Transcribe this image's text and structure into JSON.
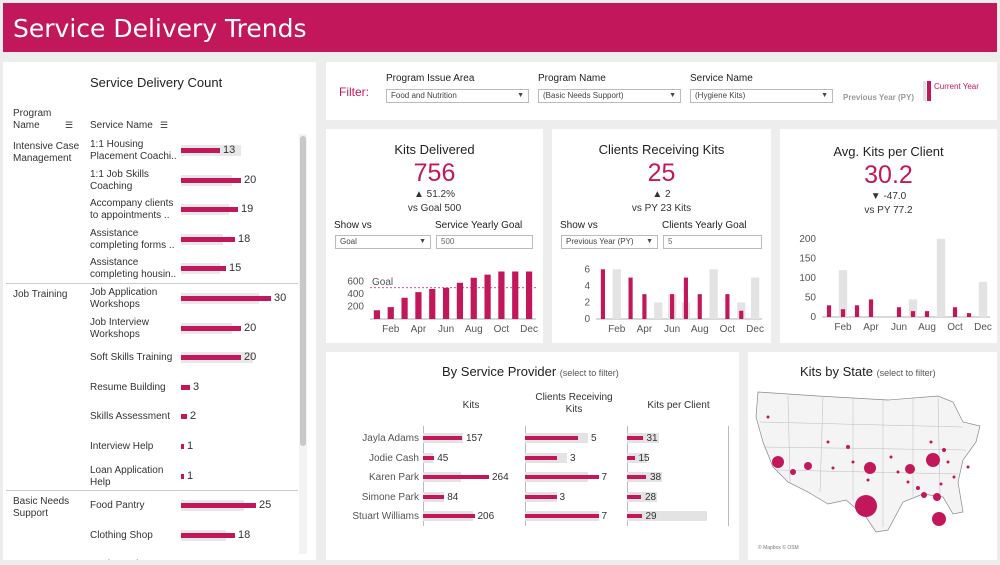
{
  "title": "Service Delivery Trends",
  "left_panel": {
    "title": "Service Delivery Count",
    "col1": "Program Name",
    "col2": "Service Name",
    "groups": [
      {
        "name": "Intensive Case Management",
        "rows": [
          {
            "name": "1:1 Housing Placement Coachi..",
            "value": 13,
            "goal": 20
          },
          {
            "name": "1:1 Job Skills Coaching",
            "value": 20,
            "goal": 17
          },
          {
            "name": "Accompany clients to appointments ..",
            "value": 19,
            "goal": 16
          },
          {
            "name": "Assistance completing forms ..",
            "value": 18,
            "goal": 14
          },
          {
            "name": "Assistance completing housin..",
            "value": 15,
            "goal": 13
          }
        ]
      },
      {
        "name": "Job Training",
        "rows": [
          {
            "name": "Job Application Workshops",
            "value": 30,
            "goal": 26
          },
          {
            "name": "Job Interview Workshops",
            "value": 20,
            "goal": 17
          },
          {
            "name": "Soft Skills Training",
            "value": 20,
            "goal": 24
          },
          {
            "name": "Resume Building",
            "value": 3,
            "goal": 0
          },
          {
            "name": "Skills Assessment",
            "value": 2,
            "goal": 0
          },
          {
            "name": "Interview Help",
            "value": 1,
            "goal": 0
          },
          {
            "name": "Loan Application Help",
            "value": 1,
            "goal": 0
          }
        ]
      },
      {
        "name": "Basic Needs Support",
        "rows": [
          {
            "name": "Food Pantry",
            "value": 25,
            "goal": 21
          },
          {
            "name": "Clothing Shop",
            "value": 18,
            "goal": 15
          },
          {
            "name": "Hygiene Kits",
            "value": null,
            "goal": 0
          }
        ]
      }
    ]
  },
  "filter": {
    "label": "Filter:",
    "f1_label": "Program Issue Area",
    "f1_value": "Food and Nutrition",
    "f2_label": "Program Name",
    "f2_value": "(Basic Needs Support)",
    "f3_label": "Service Name",
    "f3_value": "(Hygiene Kits)",
    "legend_py": "Previous Year (PY)",
    "legend_cy": "Current Year",
    "color_cy": "#c2185b",
    "color_py": "#e3e3e3"
  },
  "kpi1": {
    "title": "Kits Delivered",
    "value": "756",
    "delta": "▲ 51.2%",
    "compare": "vs Goal 500",
    "show_vs_label": "Show vs",
    "show_vs_value": "Goal",
    "goal_label": "Service Yearly Goal",
    "goal_value": "500",
    "y_ticks": [
      "600",
      "400",
      "200"
    ],
    "goal_text": "Goal",
    "x_labels": [
      "Feb",
      "Apr",
      "Jun",
      "Aug",
      "Oct",
      "Dec"
    ]
  },
  "kpi2": {
    "title": "Clients Receiving Kits",
    "value": "25",
    "delta": "▲ 2",
    "compare": "vs PY 23 Kits",
    "show_vs_label": "Show vs",
    "show_vs_value": "Previous Year (PY)",
    "goal_label": "Clients Yearly Goal",
    "goal_value": "5",
    "y_ticks": [
      "6",
      "4",
      "2",
      "0"
    ],
    "x_labels": [
      "Feb",
      "Apr",
      "Jun",
      "Aug",
      "Oct",
      "Dec"
    ]
  },
  "kpi3": {
    "title": "Avg. Kits per Client",
    "value": "30.2",
    "delta": "▼ -47.0",
    "compare": "vs PY 77.2",
    "y_ticks": [
      "200",
      "150",
      "100",
      "50",
      "0"
    ],
    "x_labels": [
      "Feb",
      "Apr",
      "Jun",
      "Aug",
      "Oct",
      "Dec"
    ]
  },
  "provider": {
    "title": "By Service Provider",
    "subtitle": "(select to filter)",
    "col_kits": "Kits",
    "col_clients": "Clients Receiving Kits",
    "col_kpc": "Kits per Client",
    "rows": [
      {
        "name": "Jayla Adams",
        "kits": 157,
        "kits_py": 160,
        "clients": 5,
        "clients_py": 6,
        "kpc": 31,
        "kpc_py": 32
      },
      {
        "name": "Jodie Cash",
        "kits": 45,
        "kits_py": 40,
        "clients": 3,
        "clients_py": 4,
        "kpc": 15,
        "kpc_py": 20
      },
      {
        "name": "Karen Park",
        "kits": 264,
        "kits_py": 150,
        "clients": 7,
        "clients_py": 6,
        "kpc": 38,
        "kpc_py": 35
      },
      {
        "name": "Simone Park",
        "kits": 84,
        "kits_py": 85,
        "clients": 3,
        "clients_py": 3,
        "kpc": 28,
        "kpc_py": 30
      },
      {
        "name": "Stuart Williams",
        "kits": 206,
        "kits_py": 200,
        "clients": 7,
        "clients_py": 7,
        "kpc": 29,
        "kpc_py": 80
      }
    ]
  },
  "map": {
    "title": "Kits by State",
    "subtitle": "(select to filter)",
    "credit": "© Mapbox © OSM"
  },
  "chart_data": [
    {
      "type": "bar",
      "title": "Kits Delivered",
      "categories": [
        "Jan",
        "Feb",
        "Mar",
        "Apr",
        "May",
        "Jun",
        "Jul",
        "Aug",
        "Sep",
        "Oct",
        "Nov",
        "Dec"
      ],
      "series": [
        {
          "name": "Current Year",
          "values": [
            140,
            190,
            340,
            430,
            480,
            500,
            580,
            660,
            710,
            760,
            760,
            760
          ]
        }
      ],
      "goal_line": 500,
      "ylim": [
        0,
        800
      ]
    },
    {
      "type": "bar",
      "title": "Clients Receiving Kits",
      "categories": [
        "Jan",
        "Feb",
        "Mar",
        "Apr",
        "May",
        "Jun",
        "Jul",
        "Aug",
        "Sep",
        "Oct",
        "Nov",
        "Dec"
      ],
      "series": [
        {
          "name": "Current Year",
          "values": [
            6,
            0,
            5,
            3,
            0,
            3,
            5,
            3,
            0,
            3,
            1,
            0
          ]
        },
        {
          "name": "Previous Year (PY)",
          "values": [
            0,
            6,
            0,
            0,
            2,
            3,
            2,
            0,
            6,
            0,
            2,
            5
          ]
        }
      ],
      "ylim": [
        0,
        7
      ]
    },
    {
      "type": "bar",
      "title": "Avg. Kits per Client",
      "categories": [
        "Jan",
        "Feb",
        "Mar",
        "Apr",
        "May",
        "Jun",
        "Jul",
        "Aug",
        "Sep",
        "Oct",
        "Nov",
        "Dec"
      ],
      "series": [
        {
          "name": "Current Year",
          "values": [
            30,
            20,
            30,
            45,
            0,
            25,
            15,
            15,
            0,
            25,
            10,
            0
          ]
        },
        {
          "name": "Previous Year (PY)",
          "values": [
            0,
            120,
            0,
            0,
            0,
            0,
            45,
            0,
            200,
            0,
            0,
            90
          ]
        }
      ],
      "ylim": [
        0,
        220
      ]
    }
  ]
}
